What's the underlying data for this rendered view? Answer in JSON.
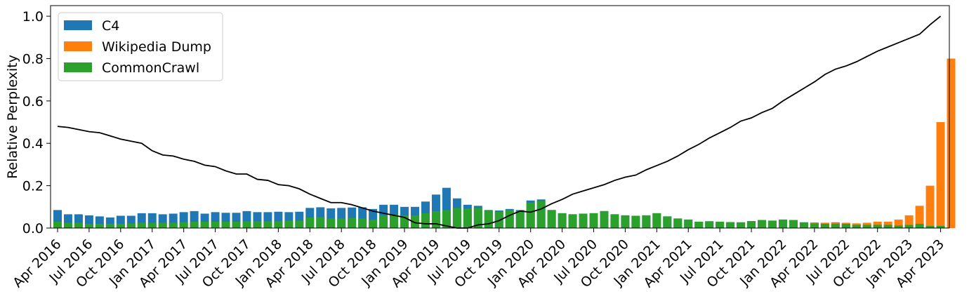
{
  "chart_data": {
    "type": "bar",
    "ylabel": "Relative Perplexity",
    "xlabel": "",
    "ylim": [
      0,
      1.05
    ],
    "yticks": [
      0.0,
      0.2,
      0.4,
      0.6,
      0.8,
      1.0
    ],
    "ytick_labels": [
      "0.0",
      "0.2",
      "0.4",
      "0.6",
      "0.8",
      "1.0"
    ],
    "grid": false,
    "legend_position": "top-left",
    "first_month": "2016-04",
    "months_count": 85,
    "xtick_labels": [
      "Apr 2016",
      "Jul 2016",
      "Oct 2016",
      "Jan 2017",
      "Apr 2017",
      "Jul 2017",
      "Oct 2017",
      "Jan 2018",
      "Apr 2018",
      "Jul 2018",
      "Oct 2018",
      "Jan 2019",
      "Apr 2019",
      "Jul 2019",
      "Oct 2019",
      "Jan 2020",
      "Apr 2020",
      "Jul 2020",
      "Oct 2020",
      "Jan 2021",
      "Apr 2021",
      "Jul 2021",
      "Oct 2021",
      "Jan 2022",
      "Apr 2022",
      "Jul 2022",
      "Oct 2022",
      "Jan 2023",
      "Apr 2023"
    ],
    "series": [
      {
        "name": "C4",
        "kind": "bar",
        "color": "#1f77b4",
        "values": [
          0.085,
          0.065,
          0.065,
          0.06,
          0.055,
          0.05,
          0.058,
          0.058,
          0.07,
          0.07,
          0.065,
          0.068,
          0.075,
          0.08,
          0.068,
          0.075,
          0.072,
          0.072,
          0.08,
          0.075,
          0.075,
          0.077,
          0.075,
          0.077,
          0.095,
          0.098,
          0.093,
          0.095,
          0.097,
          0.098,
          0.09,
          0.11,
          0.11,
          0.1,
          0.1,
          0.125,
          0.158,
          0.19,
          0.14,
          0.11,
          0.105,
          0.085,
          0.083,
          0.09,
          0.085,
          0.13,
          0.135,
          0.085,
          0.07,
          0.065,
          0.068,
          0.07,
          0.08,
          0.065,
          0.06,
          0.058,
          0.06,
          0.07,
          0.055,
          0.045,
          0.04,
          0.03,
          0.032,
          0.03,
          0.028,
          0.027,
          0.033,
          0.038,
          0.035,
          0.04,
          0.038,
          0.027,
          0.026,
          0.025,
          0.027,
          0.02,
          0.018,
          0.018,
          0.018,
          0.018,
          0.015,
          0.02,
          0.015,
          0.01,
          0.01
        ]
      },
      {
        "name": "Wikipedia Dump",
        "kind": "bar",
        "color": "#ff7f0e",
        "values": [
          0,
          0,
          0,
          0,
          0,
          0,
          0,
          0,
          0,
          0,
          0,
          0,
          0,
          0,
          0,
          0,
          0,
          0,
          0,
          0,
          0,
          0,
          0,
          0,
          0,
          0,
          0,
          0,
          0,
          0,
          0,
          0,
          0,
          0,
          0,
          0,
          0,
          0,
          0,
          0,
          0,
          0,
          0,
          0,
          0,
          0,
          0,
          0,
          0,
          0,
          0,
          0,
          0,
          0,
          0,
          0,
          0,
          0,
          0,
          0,
          0,
          0,
          0,
          0,
          0,
          0,
          0,
          0,
          0,
          0,
          0,
          0,
          0.025,
          0.025,
          0.025,
          0.025,
          0.022,
          0.025,
          0.03,
          0.03,
          0.04,
          0.06,
          0.105,
          0.2,
          0.5,
          0.8,
          0
        ]
      },
      {
        "name": "CommonCrawl",
        "kind": "bar",
        "color": "#2ca02c",
        "values": [
          0.03,
          0.025,
          0.025,
          0.02,
          0.02,
          0.02,
          0.02,
          0.022,
          0.025,
          0.025,
          0.025,
          0.025,
          0.028,
          0.03,
          0.03,
          0.03,
          0.03,
          0.03,
          0.032,
          0.032,
          0.032,
          0.032,
          0.035,
          0.035,
          0.05,
          0.052,
          0.045,
          0.045,
          0.048,
          0.045,
          0.04,
          0.06,
          0.063,
          0.06,
          0.06,
          0.07,
          0.08,
          0.085,
          0.095,
          0.092,
          0.095,
          0.082,
          0.078,
          0.085,
          0.08,
          0.12,
          0.128,
          0.085,
          0.07,
          0.065,
          0.068,
          0.07,
          0.08,
          0.065,
          0.06,
          0.058,
          0.06,
          0.07,
          0.055,
          0.045,
          0.04,
          0.03,
          0.032,
          0.03,
          0.028,
          0.027,
          0.033,
          0.038,
          0.035,
          0.04,
          0.038,
          0.027,
          0.022,
          0.02,
          0.02,
          0.02,
          0.015,
          0.015,
          0.015,
          0.015,
          0.012,
          0.015,
          0.02,
          0.01,
          0.01
        ]
      },
      {
        "name": "",
        "kind": "line",
        "color": "#000000",
        "values": [
          0.48,
          0.475,
          0.465,
          0.455,
          0.45,
          0.435,
          0.42,
          0.41,
          0.4,
          0.365,
          0.345,
          0.34,
          0.325,
          0.315,
          0.297,
          0.29,
          0.27,
          0.255,
          0.255,
          0.23,
          0.225,
          0.205,
          0.2,
          0.185,
          0.16,
          0.14,
          0.12,
          0.12,
          0.11,
          0.095,
          0.08,
          0.07,
          0.06,
          0.05,
          0.025,
          0.02,
          0.02,
          0.01,
          0.0,
          0.0,
          0.015,
          0.02,
          0.035,
          0.06,
          0.08,
          0.075,
          0.09,
          0.115,
          0.135,
          0.16,
          0.175,
          0.19,
          0.205,
          0.225,
          0.24,
          0.25,
          0.275,
          0.295,
          0.315,
          0.34,
          0.37,
          0.395,
          0.425,
          0.45,
          0.475,
          0.505,
          0.52,
          0.545,
          0.565,
          0.6,
          0.63,
          0.66,
          0.69,
          0.725,
          0.75,
          0.765,
          0.785,
          0.81,
          0.835,
          0.855,
          0.875,
          0.895,
          0.915,
          0.96,
          1.0
        ]
      }
    ]
  }
}
